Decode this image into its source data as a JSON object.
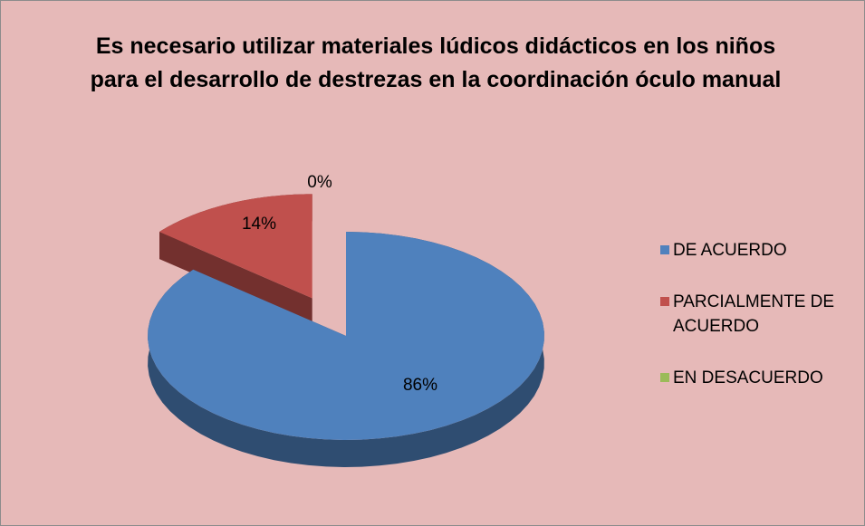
{
  "chart_data": {
    "type": "pie",
    "title": "Es necesario utilizar materiales lúdicos didácticos en los niños para el desarrollo de destrezas en la coordinación óculo manual",
    "categories": [
      "DE ACUERDO",
      "PARCIALMENTE DE ACUERDO",
      "EN DESACUERDO"
    ],
    "values": [
      86,
      14,
      0
    ],
    "value_labels": [
      "86%",
      "14%",
      "0%"
    ],
    "colors": [
      "#4f81bd",
      "#c0504d",
      "#9bbb59"
    ],
    "legend": "right"
  }
}
